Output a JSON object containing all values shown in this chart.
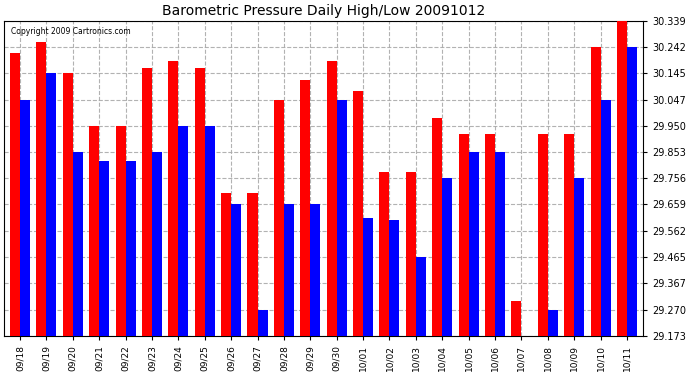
{
  "title": "Barometric Pressure Daily High/Low 20091012",
  "copyright": "Copyright 2009 Cartronics.com",
  "dates": [
    "09/18",
    "09/19",
    "09/20",
    "09/21",
    "09/22",
    "09/23",
    "09/24",
    "09/25",
    "09/26",
    "09/27",
    "09/28",
    "09/29",
    "09/30",
    "10/01",
    "10/02",
    "10/03",
    "10/04",
    "10/05",
    "10/06",
    "10/07",
    "10/08",
    "10/09",
    "10/10",
    "10/11"
  ],
  "highs": [
    30.22,
    30.26,
    30.145,
    29.95,
    29.95,
    30.165,
    30.19,
    30.165,
    29.7,
    29.7,
    30.047,
    30.12,
    30.19,
    30.08,
    29.78,
    29.78,
    29.98,
    29.92,
    29.92,
    29.3,
    29.92,
    29.92,
    30.242,
    30.339
  ],
  "lows": [
    30.047,
    30.145,
    29.853,
    29.82,
    29.82,
    29.853,
    29.95,
    29.95,
    29.659,
    29.27,
    29.659,
    29.659,
    30.047,
    29.61,
    29.6,
    29.465,
    29.756,
    29.853,
    29.853,
    29.173,
    29.27,
    29.756,
    30.047,
    30.242
  ],
  "high_color": "#FF0000",
  "low_color": "#0000FF",
  "bg_color": "#FFFFFF",
  "grid_color": "#AAAAAA",
  "ymin": 29.173,
  "ymax": 30.339,
  "yticks": [
    29.173,
    29.27,
    29.367,
    29.465,
    29.562,
    29.659,
    29.756,
    29.853,
    29.95,
    30.047,
    30.145,
    30.242,
    30.339
  ]
}
